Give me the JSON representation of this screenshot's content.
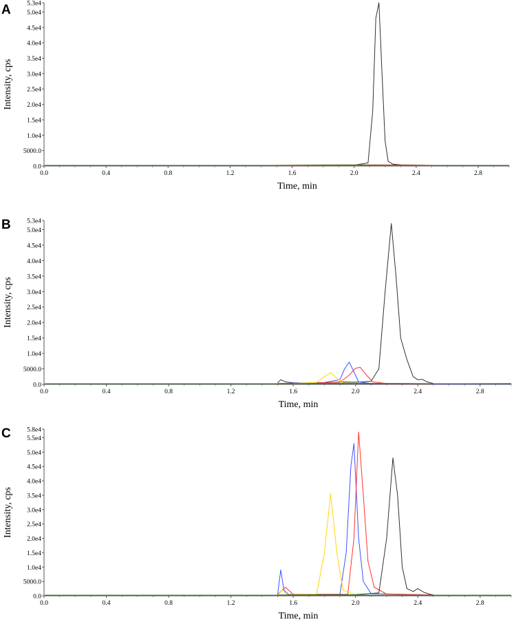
{
  "colors": {
    "black": "#303030",
    "red": "#ff3030",
    "blue": "#4050ff",
    "yellow": "#ffd800",
    "green": "#2a8a2a"
  },
  "chart_data": [
    {
      "panel": "A",
      "type": "line",
      "xlabel": "Time, min",
      "ylabel": "Intensity, cps",
      "xlim": [
        0.0,
        3.0
      ],
      "ylim": [
        0,
        53000
      ],
      "xticks": [
        "0.0",
        "0.4",
        "0.8",
        "1.2",
        "1.6",
        "2.0",
        "2.4",
        "2.8"
      ],
      "yticks": [
        {
          "v": 0,
          "label": "0.0"
        },
        {
          "v": 5000,
          "label": "5000.0"
        },
        {
          "v": 10000,
          "label": "1.0e4"
        },
        {
          "v": 15000,
          "label": "1.5e4"
        },
        {
          "v": 20000,
          "label": "2.0e4"
        },
        {
          "v": 25000,
          "label": "2.5e4"
        },
        {
          "v": 30000,
          "label": "3.0e4"
        },
        {
          "v": 35000,
          "label": "3.5e4"
        },
        {
          "v": 40000,
          "label": "4.0e4"
        },
        {
          "v": 45000,
          "label": "4.5e4"
        },
        {
          "v": 50000,
          "label": "5.0e4"
        },
        {
          "v": 53000,
          "label": "5.3e4"
        }
      ],
      "series": [
        {
          "color": "#303030",
          "x": [
            1.5,
            2.0,
            2.09,
            2.12,
            2.14,
            2.16,
            2.18,
            2.2,
            2.22,
            2.25,
            2.3,
            2.4,
            2.5
          ],
          "y": [
            200,
            300,
            1000,
            18000,
            48000,
            53000,
            30000,
            8000,
            1500,
            600,
            400,
            300,
            200
          ]
        },
        {
          "color": "#2a8a2a",
          "x": [
            1.5,
            1.8,
            2.0,
            2.2,
            2.5
          ],
          "y": [
            250,
            350,
            400,
            350,
            250
          ]
        },
        {
          "color": "#ff3030",
          "x": [
            1.5,
            2.0,
            2.2,
            2.5
          ],
          "y": [
            150,
            200,
            300,
            150
          ]
        }
      ]
    },
    {
      "panel": "B",
      "type": "line",
      "xlabel": "Time, min",
      "ylabel": "Intensity, cps",
      "xlim": [
        0.0,
        3.0
      ],
      "ylim": [
        0,
        53000
      ],
      "xticks": [
        "0.0",
        "0.4",
        "0.8",
        "1.2",
        "1.6",
        "2.0",
        "2.4",
        "2.8"
      ],
      "yticks": [
        {
          "v": 0,
          "label": "0.0"
        },
        {
          "v": 5000,
          "label": "5000.0"
        },
        {
          "v": 10000,
          "label": "1.0e4"
        },
        {
          "v": 15000,
          "label": "1.5e4"
        },
        {
          "v": 20000,
          "label": "2.0e4"
        },
        {
          "v": 25000,
          "label": "2.5e4"
        },
        {
          "v": 30000,
          "label": "3.0e4"
        },
        {
          "v": 35000,
          "label": "3.5e4"
        },
        {
          "v": 40000,
          "label": "4.0e4"
        },
        {
          "v": 45000,
          "label": "4.5e4"
        },
        {
          "v": 50000,
          "label": "5.0e4"
        },
        {
          "v": 53000,
          "label": "5.3e4"
        }
      ],
      "series": [
        {
          "color": "#303030",
          "x": [
            1.5,
            1.52,
            1.55,
            1.6,
            1.7,
            1.8,
            1.9,
            2.0,
            2.1,
            2.15,
            2.19,
            2.23,
            2.26,
            2.29,
            2.33,
            2.37,
            2.4,
            2.43,
            2.46,
            2.5
          ],
          "y": [
            500,
            1500,
            800,
            500,
            400,
            500,
            800,
            700,
            1000,
            5000,
            30000,
            52000,
            35000,
            15000,
            8000,
            2500,
            1500,
            1600,
            800,
            300
          ]
        },
        {
          "color": "#4050ff",
          "x": [
            1.5,
            1.6,
            1.7,
            1.8,
            1.9,
            1.93,
            1.96,
            1.99,
            2.02,
            2.1,
            2.5,
            3.0
          ],
          "y": [
            300,
            400,
            500,
            600,
            1500,
            5000,
            7200,
            4000,
            800,
            300,
            200,
            300
          ]
        },
        {
          "color": "#ff3030",
          "x": [
            1.5,
            1.7,
            1.9,
            1.96,
            2.0,
            2.03,
            2.07,
            2.11,
            2.2,
            2.5
          ],
          "y": [
            200,
            400,
            700,
            3000,
            5200,
            5500,
            3000,
            800,
            300,
            200
          ]
        },
        {
          "color": "#ffd800",
          "x": [
            1.6,
            1.75,
            1.8,
            1.84,
            1.88,
            1.92,
            2.0
          ],
          "y": [
            300,
            600,
            2500,
            3800,
            2000,
            500,
            300
          ]
        },
        {
          "color": "#2a8a2a",
          "x": [
            1.5,
            2.0,
            2.5
          ],
          "y": [
            250,
            350,
            250
          ]
        }
      ]
    },
    {
      "panel": "C",
      "type": "line",
      "xlabel": "Time, min",
      "ylabel": "Intensity, cps",
      "xlim": [
        0.0,
        3.0
      ],
      "ylim": [
        0,
        58000
      ],
      "xticks": [
        "0.0",
        "0.4",
        "0.8",
        "1.2",
        "1.6",
        "2.0",
        "2.4",
        "2.8"
      ],
      "yticks": [
        {
          "v": 0,
          "label": "0.0"
        },
        {
          "v": 5000,
          "label": "5000.0"
        },
        {
          "v": 10000,
          "label": "1.0e4"
        },
        {
          "v": 15000,
          "label": "1.5e4"
        },
        {
          "v": 20000,
          "label": "2.0e4"
        },
        {
          "v": 25000,
          "label": "2.5e4"
        },
        {
          "v": 30000,
          "label": "3.0e4"
        },
        {
          "v": 35000,
          "label": "3.5e4"
        },
        {
          "v": 40000,
          "label": "4.0e4"
        },
        {
          "v": 45000,
          "label": "4.5e4"
        },
        {
          "v": 50000,
          "label": "5.0e4"
        },
        {
          "v": 55000,
          "label": "5.5e4"
        },
        {
          "v": 58000,
          "label": "5.8e4"
        }
      ],
      "series": [
        {
          "color": "#4050ff",
          "x": [
            1.5,
            1.52,
            1.54,
            1.57,
            1.9,
            1.94,
            1.97,
            1.99,
            2.02,
            2.05,
            2.1,
            2.5
          ],
          "y": [
            500,
            9000,
            2000,
            500,
            500,
            15000,
            45000,
            53000,
            20000,
            5000,
            800,
            300
          ]
        },
        {
          "color": "#ff3030",
          "x": [
            1.5,
            1.55,
            1.6,
            1.95,
            1.99,
            2.02,
            2.05,
            2.08,
            2.12,
            2.2,
            2.5
          ],
          "y": [
            500,
            3000,
            500,
            500,
            20000,
            57000,
            35000,
            12000,
            3000,
            600,
            300
          ]
        },
        {
          "color": "#ffd800",
          "x": [
            1.5,
            1.53,
            1.56,
            1.75,
            1.8,
            1.84,
            1.88,
            1.92,
            2.0
          ],
          "y": [
            300,
            2000,
            400,
            500,
            15000,
            35500,
            15000,
            2000,
            400
          ]
        },
        {
          "color": "#303030",
          "x": [
            1.5,
            2.0,
            2.15,
            2.2,
            2.24,
            2.27,
            2.3,
            2.33,
            2.37,
            2.4,
            2.44,
            2.48,
            2.5
          ],
          "y": [
            300,
            400,
            1000,
            20000,
            48000,
            35000,
            10000,
            2500,
            1500,
            2500,
            1200,
            500,
            300
          ]
        },
        {
          "color": "#2a8a2a",
          "x": [
            1.5,
            2.0,
            2.5
          ],
          "y": [
            200,
            300,
            200
          ]
        }
      ]
    }
  ],
  "panels": [
    {
      "letter": "A"
    },
    {
      "letter": "B"
    },
    {
      "letter": "C"
    }
  ]
}
